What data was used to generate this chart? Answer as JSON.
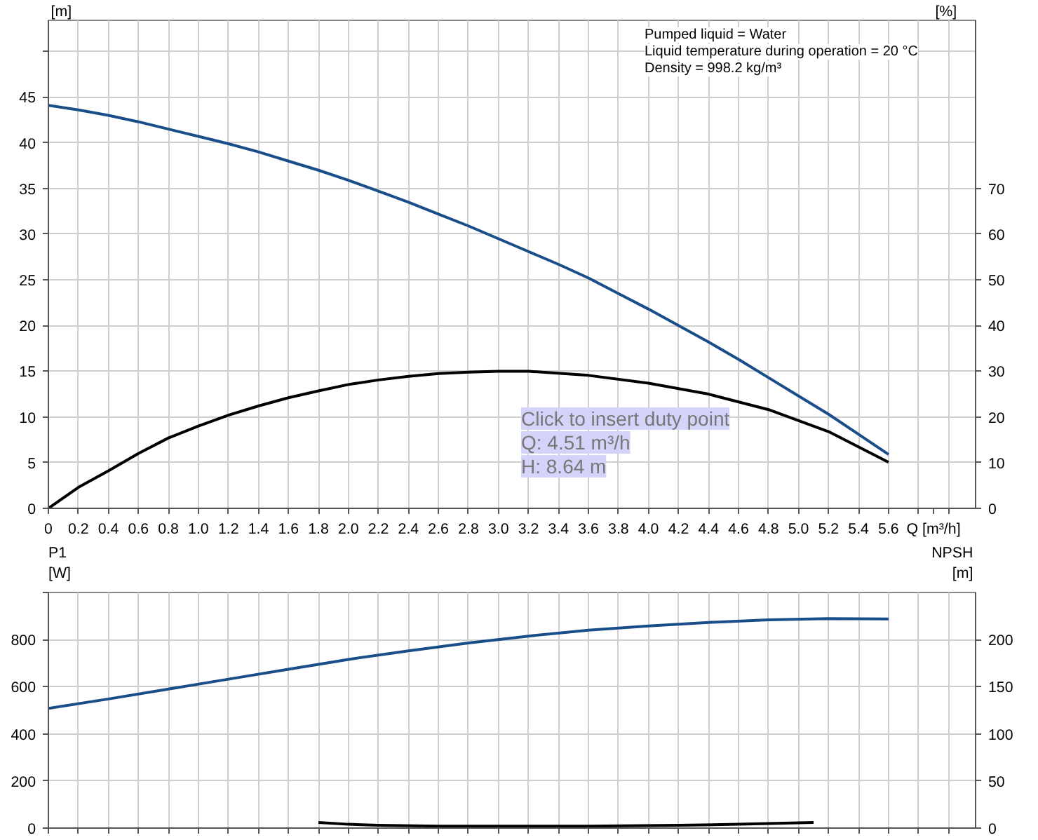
{
  "chart_data": [
    {
      "type": "line",
      "xlabel": "Q [m³/h]",
      "ylabel": "[m]",
      "y2label": "[%]",
      "xlim": [
        0,
        6.18
      ],
      "xticks": [
        0,
        0.2,
        0.4,
        0.6,
        0.8,
        {
          "value": 1.0,
          "label": "1.0"
        },
        1.2,
        1.4,
        1.6,
        1.8,
        {
          "value": 2.0,
          "label": "2.0"
        },
        2.2,
        2.4,
        2.6,
        2.8,
        {
          "value": 3.0,
          "label": "3.0"
        },
        3.2,
        3.4,
        3.6,
        3.8,
        {
          "value": 4.0,
          "label": "4.0"
        },
        4.2,
        4.4,
        4.6,
        4.8,
        {
          "value": 5.0,
          "label": "5.0"
        },
        5.2,
        5.4,
        5.6,
        {
          "value": 5.8,
          "label": null
        },
        {
          "value": 6.0,
          "label": null
        }
      ],
      "ylim": [
        0,
        53.4
      ],
      "yticks": [
        0,
        5,
        10,
        15,
        20,
        25,
        30,
        35,
        40,
        45,
        {
          "value": 50,
          "label": null
        }
      ],
      "y2lim": [
        0,
        106.8
      ],
      "y2ticks": [
        0,
        10,
        20,
        30,
        40,
        50,
        60,
        70
      ],
      "grid": true,
      "marker": "none",
      "line_style": "solid",
      "series": [
        {
          "color": "#1a4e8a",
          "x": [
            0,
            0.2,
            0.4,
            0.6,
            0.8,
            1.0,
            1.2,
            1.4,
            1.6,
            1.8,
            2.0,
            2.2,
            2.4,
            2.6,
            2.8,
            3.0,
            3.2,
            3.4,
            3.6,
            3.8,
            4.0,
            4.2,
            4.4,
            4.6,
            4.8,
            5.0,
            5.2,
            5.4,
            5.6
          ],
          "values": [
            44.1,
            43.6,
            43.0,
            42.3,
            41.5,
            40.7,
            39.9,
            39.0,
            38.0,
            37.0,
            35.9,
            34.7,
            33.5,
            32.2,
            30.9,
            29.5,
            28.1,
            26.7,
            25.2,
            23.5,
            21.8,
            20.0,
            18.2,
            16.3,
            14.3,
            12.3,
            10.3,
            8.1,
            5.9
          ]
        },
        {
          "color": "#000000",
          "axis": "y2",
          "x": [
            0,
            0.2,
            0.4,
            0.6,
            0.8,
            1.0,
            1.2,
            1.4,
            1.6,
            1.8,
            2.0,
            2.2,
            2.4,
            2.6,
            2.8,
            3.0,
            3.2,
            3.6,
            4.0,
            4.4,
            4.8,
            5.2,
            5.6
          ],
          "values": [
            0,
            4.6,
            8.2,
            12,
            15.4,
            18,
            20.4,
            22.4,
            24.2,
            25.7,
            27.1,
            28.1,
            28.9,
            29.5,
            29.8,
            30,
            30,
            29.1,
            27.4,
            25,
            21.6,
            16.8,
            10.1
          ]
        }
      ],
      "annotations": [
        "Pumped liquid = Water",
        "Liquid temperature during operation = 20 °C",
        "Density = 998.2 kg/m³",
        "Click to insert duty point",
        "Q: 4.51 m³/h",
        "H: 8.64 m"
      ]
    },
    {
      "type": "line",
      "ylabel": "P1 [W]",
      "y2label": "NPSH [m]",
      "xlim": [
        0,
        6.18
      ],
      "xticks": [
        0,
        0.2,
        0.4,
        0.6,
        0.8,
        1.0,
        1.2,
        1.4,
        1.6,
        1.8,
        2.0,
        2.2,
        2.4,
        2.6,
        2.8,
        3.0,
        3.2,
        3.4,
        3.6,
        3.8,
        4.0,
        4.2,
        4.4,
        4.6,
        4.8,
        5.0,
        5.2,
        5.4,
        5.6,
        5.8,
        6.0
      ],
      "ylim": [
        0,
        1000
      ],
      "yticks": [
        0,
        200,
        400,
        600,
        800,
        {
          "value": 1000,
          "label": null
        }
      ],
      "y2lim": [
        0,
        250
      ],
      "y2ticks": [
        0,
        50,
        100,
        150,
        200
      ],
      "tick_labels": "y",
      "grid": true,
      "marker": "none",
      "line_style": "solid",
      "series": [
        {
          "color": "#1a4e8a",
          "x": [
            0,
            0.4,
            0.8,
            1.2,
            1.6,
            2.0,
            2.4,
            2.8,
            3.2,
            3.6,
            4.0,
            4.4,
            4.8,
            5.2,
            5.6
          ],
          "values": [
            508,
            548,
            590,
            632,
            674,
            716,
            752,
            786,
            815,
            840,
            858,
            873,
            884,
            889,
            888
          ]
        },
        {
          "color": "#000000",
          "axis": "y2",
          "x": [
            1.8,
            2.0,
            2.2,
            2.6,
            3.0,
            3.6,
            4.2,
            4.6,
            5.1
          ],
          "values": [
            6,
            4,
            3,
            2,
            2,
            2,
            3,
            4,
            6
          ]
        }
      ]
    }
  ]
}
